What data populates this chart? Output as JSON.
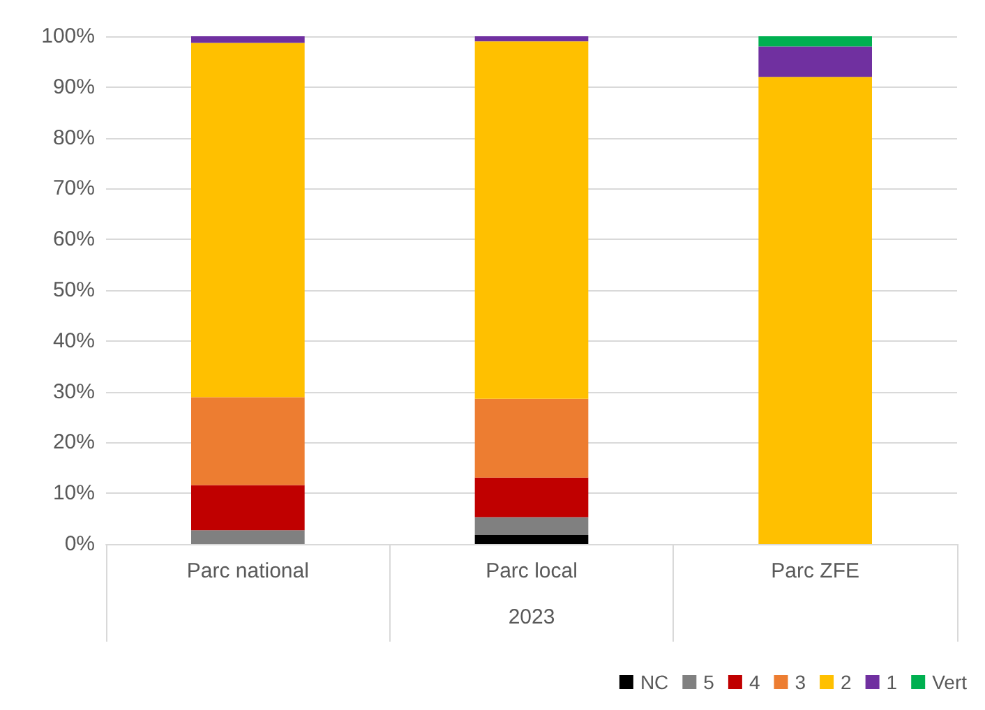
{
  "chart_data": {
    "type": "bar",
    "stacked": true,
    "categories": [
      "Parc national",
      "Parc local",
      "Parc ZFE"
    ],
    "xlabel": "2023",
    "series": [
      {
        "name": "NC",
        "color": "#000000",
        "values": [
          0,
          1.8,
          0
        ]
      },
      {
        "name": "5",
        "color": "#808080",
        "values": [
          2.7,
          3.5,
          0
        ]
      },
      {
        "name": "4",
        "color": "#c00000",
        "values": [
          8.9,
          7.8,
          0
        ]
      },
      {
        "name": "3",
        "color": "#ed7d31",
        "values": [
          17.3,
          15.5,
          0
        ]
      },
      {
        "name": "2",
        "color": "#ffc000",
        "values": [
          69.8,
          70.4,
          92
        ]
      },
      {
        "name": "1",
        "color": "#7030a0",
        "values": [
          1.3,
          1.0,
          6
        ]
      },
      {
        "name": "Vert",
        "color": "#00b050",
        "values": [
          0,
          0,
          2
        ]
      }
    ],
    "ylim": [
      0,
      100
    ],
    "yticks": [
      {
        "value": 0,
        "label": "0%"
      },
      {
        "value": 10,
        "label": "10%"
      },
      {
        "value": 20,
        "label": "20%"
      },
      {
        "value": 30,
        "label": "30%"
      },
      {
        "value": 40,
        "label": "40%"
      },
      {
        "value": 50,
        "label": "50%"
      },
      {
        "value": 60,
        "label": "60%"
      },
      {
        "value": 70,
        "label": "70%"
      },
      {
        "value": 80,
        "label": "80%"
      },
      {
        "value": 90,
        "label": "90%"
      },
      {
        "value": 100,
        "label": "100%"
      }
    ],
    "grid": "y",
    "legend": "bottom right"
  }
}
